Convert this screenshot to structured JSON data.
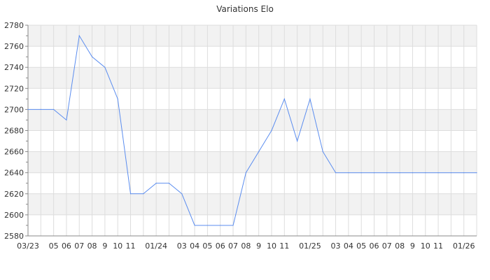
{
  "chart_data": {
    "type": "line",
    "title": "Variations Elo",
    "xlabel": "",
    "ylabel": "",
    "ylim": [
      2580,
      2780
    ],
    "yticks": [
      2580,
      2600,
      2620,
      2640,
      2660,
      2680,
      2700,
      2720,
      2740,
      2760,
      2780
    ],
    "grid": true,
    "colors": {
      "line": "#5b8def",
      "band": "#f2f2f2",
      "grid": "#dddddd",
      "axis": "#888888"
    },
    "x": [
      "2023-03",
      "2023-04",
      "2023-05",
      "2023-06",
      "2023-07",
      "2023-08",
      "2023-09",
      "2023-10",
      "2023-11",
      "2023-12",
      "2024-01",
      "2024-02",
      "2024-03",
      "2024-04",
      "2024-05",
      "2024-06",
      "2024-07",
      "2024-08",
      "2024-09",
      "2024-10",
      "2024-11",
      "2024-12",
      "2025-01",
      "2025-02",
      "2025-03",
      "2025-04",
      "2025-05",
      "2025-06",
      "2025-07",
      "2025-08",
      "2025-09",
      "2025-10",
      "2025-11",
      "2025-12",
      "2026-01",
      "2026-02"
    ],
    "xtick_labels": [
      "03/23",
      "",
      "05",
      "06",
      "07",
      "08",
      "9",
      "10",
      "11",
      "",
      "01/24",
      "",
      "03",
      "04",
      "05",
      "06",
      "07",
      "08",
      "9",
      "10",
      "11",
      "",
      "01/25",
      "",
      "03",
      "04",
      "05",
      "06",
      "07",
      "08",
      "9",
      "10",
      "11",
      "",
      "01/26",
      ""
    ],
    "values": [
      2700,
      2700,
      2700,
      2690,
      2770,
      2750,
      2740,
      2710,
      2620,
      2620,
      2630,
      2630,
      2620,
      2590,
      2590,
      2590,
      2590,
      2640,
      2660,
      2680,
      2710,
      2670,
      2710,
      2660,
      2640,
      2640,
      2640,
      2640,
      2640,
      2640,
      2640,
      2640,
      2640,
      2640,
      2640,
      2640
    ]
  }
}
